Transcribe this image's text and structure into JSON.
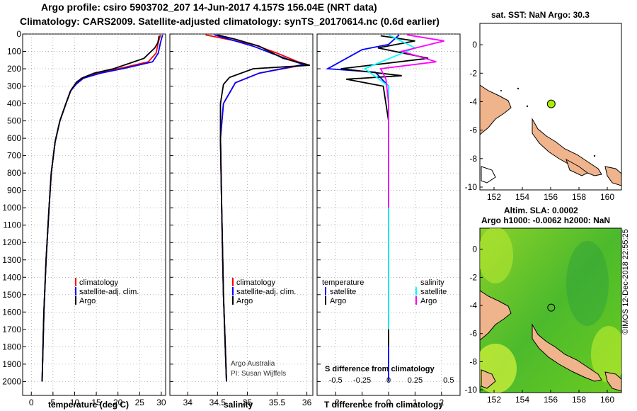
{
  "header": {
    "title_line1": "Argo profile: csiro 5903702_207 14-Jun-2017 4.157S 156.04E (NRT data)",
    "title_line2": "Climatology: CARS2009. Satellite-adjusted climatology: synTS_20170614.nc (0.6d earlier)"
  },
  "sst_map": {
    "title": "sat. SST: NaN Argo: 30.3"
  },
  "sla_map": {
    "title_line1": "Altim. SLA: 0.0002",
    "title_line2": "Argo h1000: -0.0062 h2000: NaN"
  },
  "credits": {
    "text1": "Argo Australia",
    "text2": "PI: Susan Wijffels",
    "timestamp": "©IMOS 12-Dec-2018 22:55:25"
  },
  "colors": {
    "climatology": "#ff0000",
    "satellite": "#0000ff",
    "argo": "#000000",
    "sat_salinity": "#00ffff",
    "argo_salinity": "#ff00ff",
    "float_marker": "#aaee00",
    "land": "#f0b48c"
  },
  "depth_ticks": [
    0,
    100,
    200,
    300,
    400,
    500,
    600,
    700,
    800,
    900,
    1000,
    1100,
    1200,
    1300,
    1400,
    1500,
    1600,
    1700,
    1800,
    1900,
    2000
  ],
  "chart_data": [
    {
      "type": "line",
      "xlabel": "temperature (deg C)",
      "xlim": [
        -2,
        31
      ],
      "xticks": [
        0,
        5,
        10,
        15,
        20,
        25,
        30
      ],
      "ylim": [
        2080,
        0
      ],
      "legend": [
        "climatology",
        "satellite-adj. clim.",
        "Argo"
      ],
      "legend_placement": "lower-right",
      "series": [
        {
          "name": "climatology",
          "points": [
            [
              29.8,
              5
            ],
            [
              29.3,
              50
            ],
            [
              28.8,
              110
            ],
            [
              27,
              160
            ],
            [
              21,
              195
            ],
            [
              15,
              225
            ],
            [
              11.5,
              255
            ],
            [
              10.3,
              290
            ],
            [
              9,
              330
            ],
            [
              8,
              400
            ],
            [
              6.6,
              500
            ],
            [
              5.5,
              620
            ],
            [
              4.6,
              800
            ],
            [
              4.1,
              1000
            ],
            [
              3.4,
              1300
            ],
            [
              2.9,
              1600
            ],
            [
              2.5,
              2000
            ]
          ]
        },
        {
          "name": "satellite-adj. clim.",
          "points": [
            [
              30.3,
              5
            ],
            [
              29.8,
              50
            ],
            [
              29.3,
              110
            ],
            [
              28,
              160
            ],
            [
              22,
              195
            ],
            [
              16,
              225
            ],
            [
              12,
              255
            ],
            [
              10.3,
              290
            ],
            [
              9,
              330
            ],
            [
              8,
              400
            ],
            [
              6.6,
              500
            ],
            [
              5.5,
              620
            ],
            [
              4.6,
              800
            ],
            [
              4.1,
              1000
            ],
            [
              3.4,
              1300
            ],
            [
              2.9,
              1600
            ],
            [
              2.5,
              2000
            ]
          ]
        },
        {
          "name": "Argo",
          "points": [
            [
              29.5,
              10
            ],
            [
              29.2,
              50
            ],
            [
              28.5,
              80
            ],
            [
              26,
              140
            ],
            [
              19,
              200
            ],
            [
              14.5,
              225
            ],
            [
              12,
              250
            ],
            [
              10.5,
              275
            ],
            [
              9.2,
              320
            ],
            [
              8,
              400
            ],
            [
              6.6,
              500
            ],
            [
              5.5,
              620
            ],
            [
              4.6,
              800
            ],
            [
              4.1,
              1000
            ],
            [
              3.4,
              1300
            ],
            [
              2.9,
              1600
            ],
            [
              2.5,
              2000
            ]
          ]
        }
      ]
    },
    {
      "type": "line",
      "xlabel": "salinity",
      "xlim": [
        33.7,
        36.1
      ],
      "xticks": [
        34,
        34.5,
        35,
        35.5,
        36
      ],
      "ylim": [
        2080,
        0
      ],
      "legend": [
        "climatology",
        "satellite-adj. clim.",
        "Argo"
      ],
      "legend_placement": "lower-right",
      "series": [
        {
          "name": "climatology",
          "points": [
            [
              34.3,
              5
            ],
            [
              35.1,
              60
            ],
            [
              35.5,
              110
            ],
            [
              35.85,
              160
            ],
            [
              36,
              175
            ],
            [
              35.2,
              225
            ],
            [
              34.8,
              280
            ],
            [
              34.6,
              400
            ],
            [
              34.55,
              600
            ],
            [
              34.57,
              1000
            ],
            [
              34.6,
              1500
            ],
            [
              34.65,
              2000
            ]
          ]
        },
        {
          "name": "satellite-adj. clim.",
          "points": [
            [
              34.45,
              5
            ],
            [
              35.1,
              70
            ],
            [
              35.4,
              110
            ],
            [
              35.8,
              160
            ],
            [
              35.95,
              175
            ],
            [
              35.2,
              225
            ],
            [
              34.8,
              280
            ],
            [
              34.6,
              400
            ],
            [
              34.55,
              600
            ],
            [
              34.57,
              1000
            ],
            [
              34.6,
              1500
            ],
            [
              34.65,
              2000
            ]
          ]
        },
        {
          "name": "Argo",
          "points": [
            [
              34.5,
              5
            ],
            [
              34.8,
              30
            ],
            [
              35.2,
              70
            ],
            [
              35.6,
              140
            ],
            [
              36.05,
              180
            ],
            [
              35.1,
              200
            ],
            [
              34.7,
              250
            ],
            [
              34.6,
              290
            ],
            [
              34.55,
              400
            ],
            [
              34.55,
              600
            ],
            [
              34.57,
              1000
            ],
            [
              34.6,
              1500
            ],
            [
              34.65,
              2000
            ]
          ]
        }
      ]
    },
    {
      "type": "line",
      "xlabel": "T difference from climatology",
      "xlabel2": "S difference from climatology",
      "xlim": [
        -2.7,
        2.7
      ],
      "xticks": [
        -2,
        -1,
        0,
        1,
        2
      ],
      "xticks2": [
        "-0.5",
        "-0.25",
        "0",
        "0.25",
        "0.5"
      ],
      "ylim": [
        2080,
        0
      ],
      "legend_left": {
        "title": "temperature",
        "items": [
          "satellite",
          "Argo"
        ]
      },
      "legend_right": {
        "title": "salinity",
        "items": [
          "satellite",
          "Argo"
        ]
      },
      "series": [
        {
          "name": "satellite",
          "points": [
            [
              0.4,
              5
            ],
            [
              0,
              60
            ],
            [
              -1,
              90
            ],
            [
              -2.3,
              200
            ],
            [
              -0.5,
              220
            ],
            [
              0,
              300
            ],
            [
              0,
              600
            ],
            [
              0,
              2000
            ]
          ]
        },
        {
          "name": "Argo",
          "points": [
            [
              -0.3,
              10
            ],
            [
              1,
              40
            ],
            [
              -0.4,
              80
            ],
            [
              1.5,
              140
            ],
            [
              -1.8,
              200
            ],
            [
              0.5,
              240
            ],
            [
              -1.6,
              260
            ],
            [
              -0.2,
              300
            ],
            [
              0,
              500
            ],
            [
              0,
              1000
            ],
            [
              0,
              1800
            ]
          ]
        },
        {
          "name": "salinity satellite",
          "points": [
            [
              0,
              5
            ],
            [
              1,
              80
            ],
            [
              -0.9,
              200
            ],
            [
              0,
              300
            ],
            [
              0,
              1700
            ]
          ]
        },
        {
          "name": "salinity Argo",
          "points": [
            [
              0.7,
              5
            ],
            [
              2.1,
              40
            ],
            [
              0.5,
              100
            ],
            [
              1.8,
              160
            ],
            [
              -0.3,
              200
            ],
            [
              -0.1,
              260
            ],
            [
              0,
              400
            ],
            [
              0,
              1000
            ]
          ]
        }
      ]
    },
    {
      "type": "map",
      "title": "sat. SST: NaN Argo: 30.3",
      "lon_range": [
        151,
        161
      ],
      "lat_range": [
        -10.2,
        1.5
      ],
      "xticks": [
        152,
        154,
        156,
        158,
        160
      ],
      "yticks": [
        0,
        -2,
        -4,
        -6,
        -8,
        -10
      ],
      "float_position": [
        156.04,
        -4.157
      ]
    },
    {
      "type": "heatmap",
      "title": "Altim. SLA: 0.0002",
      "lon_range": [
        151,
        161
      ],
      "lat_range": [
        -10.2,
        1.5
      ],
      "xticks": [
        152,
        154,
        156,
        158,
        160
      ],
      "yticks": [
        0,
        -2,
        -4,
        -6,
        -8,
        -10
      ],
      "float_position": [
        156.04,
        -4.157
      ]
    }
  ]
}
